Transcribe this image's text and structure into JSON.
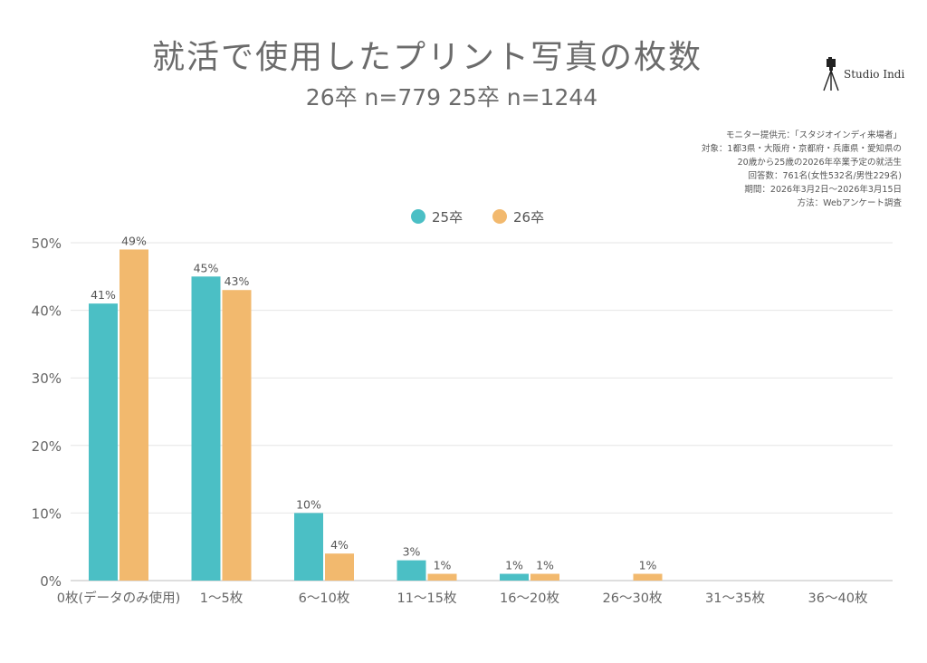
{
  "header": {
    "title": "就活で使用したプリント写真の枚数",
    "subtitle": "26卒 n=779  25卒 n=1244"
  },
  "logo": {
    "text": "Studio Indi",
    "icon": "camera-tripod-icon"
  },
  "notes": [
    "モニター提供元：「スタジオインディ来場者」",
    "対象：1都3県・大阪府・京都府・兵庫県・愛知県の",
    "20歳から25歳の2026年卒業予定の就活生",
    "回答数：761名(女性532名/男性229名)",
    "期間：2026年3月2日〜2026年3月15日",
    "方法：Webアンケート調査"
  ],
  "chart_data": {
    "type": "bar",
    "title": "就活で使用したプリント写真の枚数",
    "subtitle": "26卒 n=779  25卒 n=1244",
    "categories": [
      "0枚(データのみ使用)",
      "1〜5枚",
      "6〜10枚",
      "11〜15枚",
      "16〜20枚",
      "26〜30枚",
      "31〜35枚",
      "36〜40枚"
    ],
    "series": [
      {
        "name": "25卒",
        "color": "#4bbfc5",
        "values": [
          41,
          45,
          10,
          3,
          1,
          null,
          null,
          null
        ],
        "labels": [
          "41%",
          "45%",
          "10%",
          "3%",
          "1%",
          "",
          "",
          ""
        ]
      },
      {
        "name": "26卒",
        "color": "#f2b96e",
        "values": [
          49,
          43,
          4,
          1,
          1,
          1,
          null,
          null
        ],
        "labels": [
          "49%",
          "43%",
          "4%",
          "1%",
          "1%",
          "1%",
          "",
          ""
        ]
      }
    ],
    "ylim": [
      0,
      50
    ],
    "yticks": [
      "0%",
      "10%",
      "20%",
      "30%",
      "40%",
      "50%"
    ],
    "ytick_values": [
      0,
      10,
      20,
      30,
      40,
      50
    ],
    "grid": true,
    "legend": "top-center"
  }
}
